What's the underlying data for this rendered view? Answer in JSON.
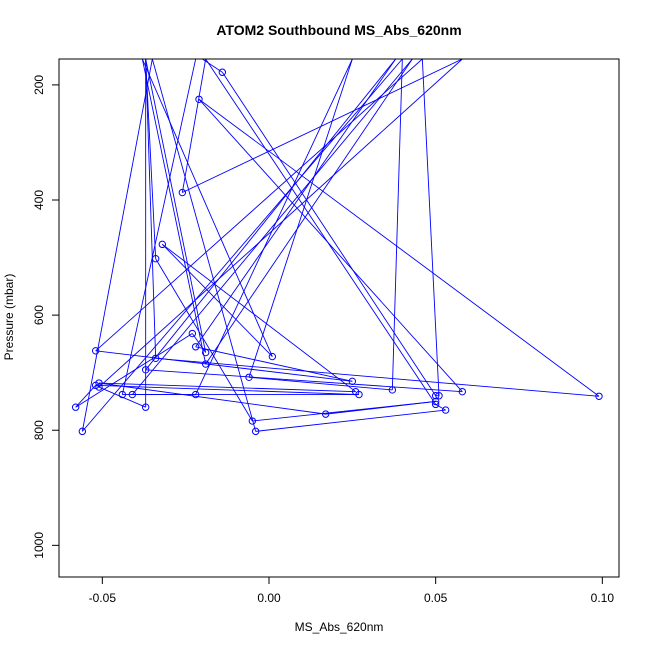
{
  "chart_data": {
    "type": "line",
    "title": "ATOM2 Southbound MS_Abs_620nm",
    "xlabel": "MS_Abs_620nm",
    "ylabel": "Pressure (mbar)",
    "xlim": [
      -0.063,
      0.105
    ],
    "ylim": [
      1055,
      155
    ],
    "y_reversed": true,
    "grid": false,
    "x_ticks": [
      -0.05,
      0.0,
      0.05,
      0.1
    ],
    "x_tick_labels": [
      "-0.05",
      "0.00",
      "0.05",
      "0.10"
    ],
    "y_ticks": [
      200,
      400,
      600,
      800,
      1000
    ],
    "y_tick_labels": [
      "200",
      "400",
      "600",
      "800",
      "1000"
    ],
    "series_color": "#0000ff",
    "marker": "open-circle",
    "series": [
      {
        "points": [
          [
            -0.02,
            155
          ],
          [
            -0.014,
            178
          ],
          [
            0.05,
            740
          ],
          [
            0.051,
            740
          ],
          [
            0.046,
            155
          ],
          [
            -0.052,
            662
          ],
          [
            0.025,
            715
          ],
          [
            -0.022,
            655
          ],
          [
            0.038,
            155
          ],
          [
            -0.037,
            695
          ],
          [
            0.058,
            733
          ],
          [
            -0.021,
            225
          ],
          [
            0.099,
            741
          ],
          [
            -0.034,
            675
          ],
          [
            -0.037,
            155
          ],
          [
            -0.034,
            502
          ],
          [
            -0.005,
            784
          ],
          [
            0.05,
            750
          ],
          [
            0.017,
            772
          ],
          [
            -0.051,
            718
          ],
          [
            0.026,
            733
          ],
          [
            -0.032,
            477
          ],
          [
            0.001,
            672
          ],
          [
            -0.038,
            155
          ],
          [
            -0.019,
            685
          ],
          [
            0.043,
            155
          ],
          [
            -0.041,
            738
          ],
          [
            -0.022,
            738
          ],
          [
            0.025,
            155
          ],
          [
            -0.006,
            708
          ],
          [
            0.037,
            730
          ],
          [
            0.04,
            155
          ],
          [
            -0.056,
            802
          ],
          [
            -0.035,
            155
          ],
          [
            -0.004,
            802
          ],
          [
            0.053,
            765
          ],
          [
            0.05,
            755
          ],
          [
            -0.019,
            155
          ],
          [
            -0.026,
            387
          ],
          [
            0.058,
            155
          ],
          [
            -0.051,
            725
          ],
          [
            -0.037,
            760
          ],
          [
            -0.037,
            155
          ],
          [
            -0.019,
            665
          ],
          [
            -0.023,
            632
          ],
          [
            -0.058,
            760
          ],
          [
            -0.052,
            722
          ],
          [
            0.027,
            738
          ],
          [
            -0.044,
            738
          ],
          [
            -0.022,
            155
          ],
          [
            0.034,
            155
          ]
        ]
      }
    ]
  }
}
